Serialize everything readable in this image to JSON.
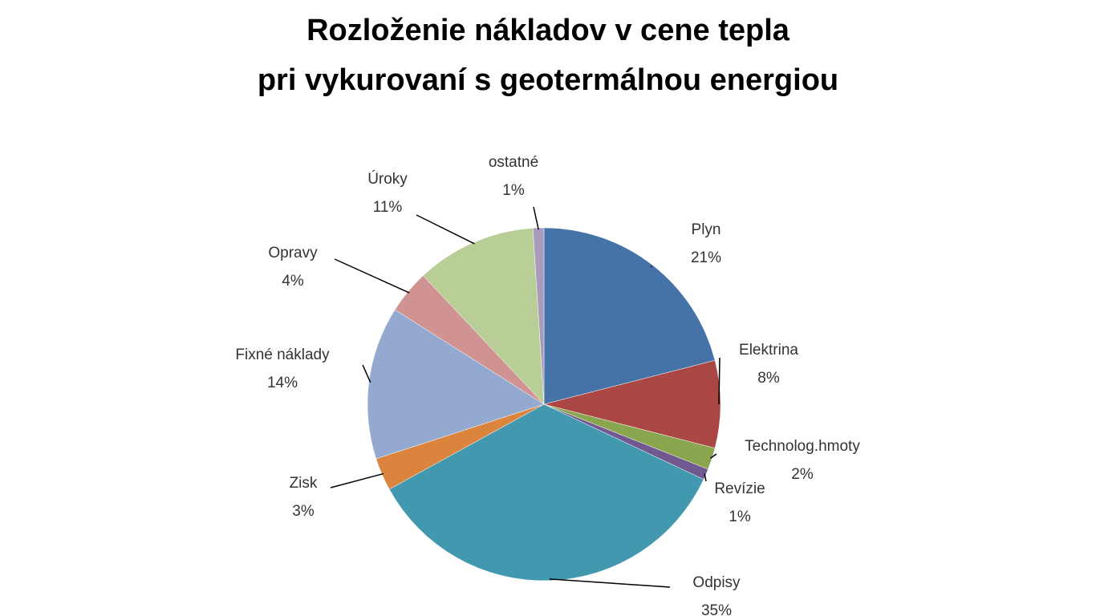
{
  "chart_data": {
    "type": "pie",
    "title": [
      "Rozloženie nákladov v cene tepla",
      "pri vykurovaní s geotermálnou energiou"
    ],
    "categories": [
      "Plyn",
      "Elektrina",
      "Technolog.hmoty",
      "Revízie",
      "Odpisy",
      "Zisk",
      "Fixné náklady",
      "Opravy",
      "Úroky",
      "ostatné"
    ],
    "values": [
      21,
      8,
      2,
      1,
      35,
      3,
      14,
      4,
      11,
      1
    ],
    "value_labels": [
      "21%",
      "8%",
      "2%",
      "1%",
      "35%",
      "3%",
      "14%",
      "4%",
      "11%",
      "1%"
    ],
    "colors": [
      "#4572a7",
      "#aa4643",
      "#89a54e",
      "#71588f",
      "#4198af",
      "#db843d",
      "#93a9cf",
      "#d19392",
      "#b9cd96",
      "#a99bbd"
    ]
  }
}
